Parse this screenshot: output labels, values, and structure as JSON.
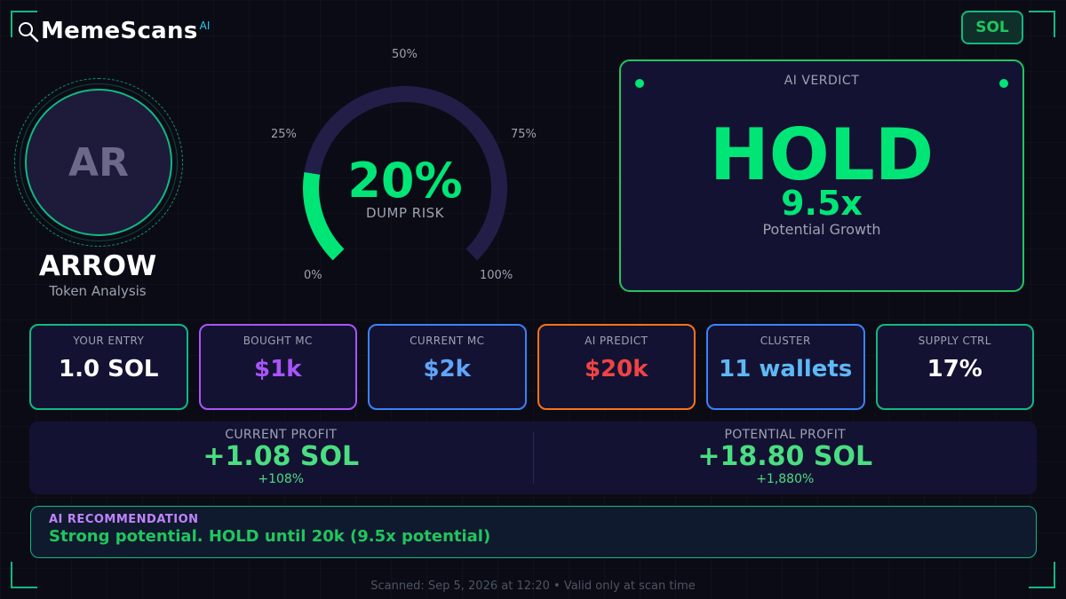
{
  "header": {
    "brand": "MemeScans",
    "brand_superscript": "AI",
    "chain": "SOL"
  },
  "token": {
    "initials": "AR",
    "name": "ARROW",
    "subtitle": "Token Analysis"
  },
  "gauge": {
    "value_label": "20%",
    "value": 20,
    "label": "DUMP RISK",
    "ticks": [
      "0%",
      "25%",
      "50%",
      "75%",
      "100%"
    ]
  },
  "verdict": {
    "title": "AI VERDICT",
    "action": "HOLD",
    "multiplier": "9.5x",
    "subtitle": "Potential Growth"
  },
  "stats": [
    {
      "label": "YOUR ENTRY",
      "value": "1.0 SOL",
      "border": "#10b981",
      "color": "#ffffff"
    },
    {
      "label": "BOUGHT MC",
      "value": "$1k",
      "border": "#a855f7",
      "color": "#a855f7"
    },
    {
      "label": "CURRENT MC",
      "value": "$2k",
      "border": "#3b82f6",
      "color": "#60a5fa"
    },
    {
      "label": "AI PREDICT",
      "value": "$20k",
      "border": "#f97316",
      "color": "#ef4444"
    },
    {
      "label": "CLUSTER",
      "value": "11 wallets",
      "border": "#3b82f6",
      "color": "#5eb8f5"
    },
    {
      "label": "SUPPLY CTRL",
      "value": "17%",
      "border": "#10b981",
      "color": "#ffffff"
    }
  ],
  "profit": {
    "current": {
      "label": "CURRENT PROFIT",
      "value": "+1.08 SOL",
      "pct": "+108%"
    },
    "potential": {
      "label": "POTENTIAL PROFIT",
      "value": "+18.80 SOL",
      "pct": "+1,880%"
    }
  },
  "recommendation": {
    "label": "AI RECOMMENDATION",
    "text": "Strong potential. HOLD until 20k (9.5x potential)"
  },
  "footer": "Scanned: Sep 5, 2026 at 12:20  •  Valid only at scan time"
}
